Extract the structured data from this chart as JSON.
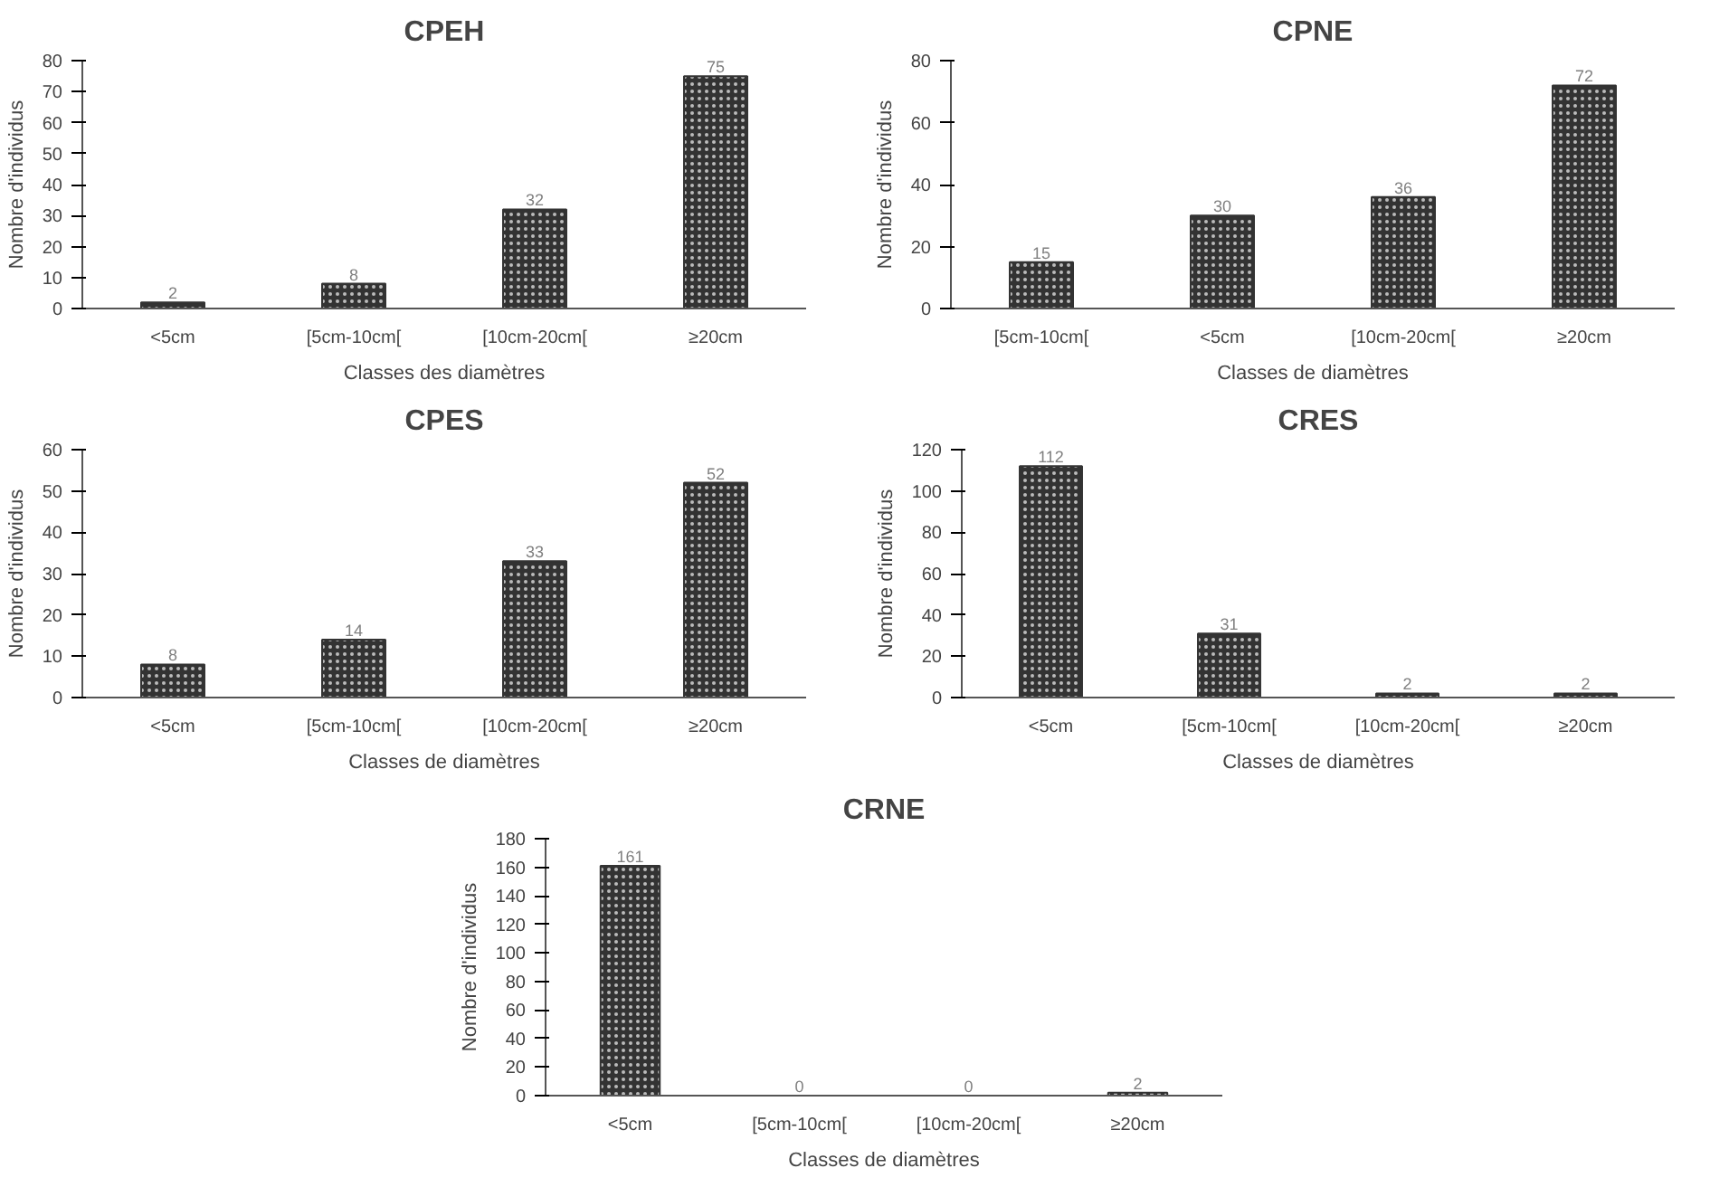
{
  "chart_data": [
    {
      "type": "bar",
      "title": "CPEH",
      "xlabel": "Classes des diamètres",
      "ylabel": "Nombre d'individus",
      "categories": [
        "<5cm",
        "[5cm-10cm[",
        "[10cm-20cm[",
        "≥20cm"
      ],
      "values": [
        2,
        8,
        32,
        75
      ],
      "color": "#333333",
      "ylim": [
        0,
        80
      ],
      "yticks": [
        0,
        10,
        20,
        30,
        40,
        50,
        60,
        70,
        80
      ],
      "grid": false,
      "data_labels": true
    },
    {
      "type": "bar",
      "title": "CPNE",
      "xlabel": "Classes de diamètres",
      "ylabel": "Nombre d'individus",
      "categories": [
        "[5cm-10cm[",
        "<5cm",
        "[10cm-20cm[",
        "≥20cm"
      ],
      "values": [
        15,
        30,
        36,
        72
      ],
      "color": "#333333",
      "ylim": [
        0,
        80
      ],
      "yticks": [
        0,
        20,
        40,
        60,
        80
      ],
      "grid": false,
      "data_labels": true
    },
    {
      "type": "bar",
      "title": "CPES",
      "xlabel": "Classes de diamètres",
      "ylabel": "Nombre d'individus",
      "categories": [
        "<5cm",
        "[5cm-10cm[",
        "[10cm-20cm[",
        "≥20cm"
      ],
      "values": [
        8,
        14,
        33,
        52
      ],
      "color": "#333333",
      "ylim": [
        0,
        60
      ],
      "yticks": [
        0,
        10,
        20,
        30,
        40,
        50,
        60
      ],
      "grid": false,
      "data_labels": true
    },
    {
      "type": "bar",
      "title": "CRES",
      "xlabel": "Classes de diamètres",
      "ylabel": "Nombre d'individus",
      "categories": [
        "<5cm",
        "[5cm-10cm[",
        "[10cm-20cm[",
        "≥20cm"
      ],
      "values": [
        112,
        31,
        2,
        2
      ],
      "color": "#333333",
      "ylim": [
        0,
        120
      ],
      "yticks": [
        0,
        20,
        40,
        60,
        80,
        100,
        120
      ],
      "grid": false,
      "data_labels": true
    },
    {
      "type": "bar",
      "title": "CRNE",
      "xlabel": "Classes de diamètres",
      "ylabel": "Nombre d'individus",
      "categories": [
        "<5cm",
        "[5cm-10cm[",
        "[10cm-20cm[",
        "≥20cm"
      ],
      "values": [
        161,
        0,
        0,
        2
      ],
      "color": "#333333",
      "ylim": [
        0,
        180
      ],
      "yticks": [
        0,
        20,
        40,
        60,
        80,
        100,
        120,
        140,
        160,
        180
      ],
      "grid": false,
      "data_labels": true
    }
  ]
}
